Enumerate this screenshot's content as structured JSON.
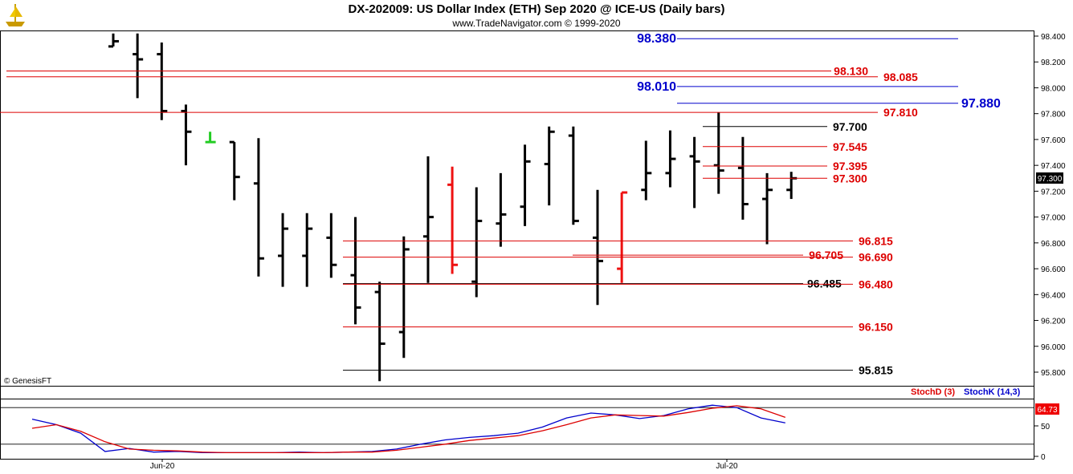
{
  "header": {
    "title": "DX-202009:  US Dollar Index (ETH) Sep 2020 @ ICE-US  (Daily bars)",
    "subtitle": "www.TradeNavigator.com © 1999-2020",
    "logo_icon": "trading-navigator-ship-icon"
  },
  "footer": {
    "copyright": "© GenesisFT"
  },
  "colors": {
    "bar": "#000000",
    "bar_red": "#ee1111",
    "bar_green": "#22cc22",
    "level_red": "#dd0000",
    "level_blue": "#0000cc",
    "level_black": "#000000",
    "stoch_d": "#dd0000",
    "stoch_k": "#0000cc"
  },
  "chart_data": [
    {
      "type": "ohlc",
      "title": "DX-202009:  US Dollar Index (ETH) Sep 2020 @ ICE-US  (Daily bars)",
      "ylim": [
        95.72,
        98.47
      ],
      "yticks": [
        98.4,
        98.2,
        98.0,
        97.8,
        97.6,
        97.4,
        97.2,
        97.0,
        96.8,
        96.6,
        96.4,
        96.2,
        96.0,
        95.8
      ],
      "ytick_labels": [
        "98.400",
        "98.200",
        "98.000",
        "97.800",
        "97.600",
        "97.400",
        "97.200",
        "97.000",
        "96.800",
        "96.600",
        "96.400",
        "96.200",
        "96.000",
        "95.800"
      ],
      "xtick_labels": [
        "Jun-20",
        "Jul-20"
      ],
      "last_price": "97.300",
      "bars": [
        {
          "o": 98.32,
          "h": 98.42,
          "l": 98.32,
          "c": 98.36,
          "color": "black"
        },
        {
          "o": 98.26,
          "h": 98.42,
          "l": 97.92,
          "c": 98.22,
          "color": "black"
        },
        {
          "o": 98.26,
          "h": 98.35,
          "l": 97.75,
          "c": 97.82,
          "color": "black"
        },
        {
          "o": 97.82,
          "h": 97.87,
          "l": 97.4,
          "c": 97.66,
          "color": "black"
        },
        {
          "o": 97.58,
          "h": 97.66,
          "l": 97.58,
          "c": 97.58,
          "color": "green"
        },
        {
          "o": 97.58,
          "h": 97.58,
          "l": 97.13,
          "c": 97.31,
          "color": "black"
        },
        {
          "o": 97.26,
          "h": 97.61,
          "l": 96.54,
          "c": 96.68,
          "color": "black"
        },
        {
          "o": 96.7,
          "h": 97.03,
          "l": 96.46,
          "c": 96.91,
          "color": "black"
        },
        {
          "o": 96.7,
          "h": 97.03,
          "l": 96.46,
          "c": 96.91,
          "color": "black"
        },
        {
          "o": 96.84,
          "h": 97.03,
          "l": 96.53,
          "c": 96.63,
          "color": "black"
        },
        {
          "o": 96.55,
          "h": 97.0,
          "l": 96.17,
          "c": 96.3,
          "color": "black"
        },
        {
          "o": 96.42,
          "h": 96.5,
          "l": 95.73,
          "c": 96.02,
          "color": "black"
        },
        {
          "o": 96.11,
          "h": 96.85,
          "l": 95.91,
          "c": 96.75,
          "color": "black"
        },
        {
          "o": 96.85,
          "h": 97.47,
          "l": 96.49,
          "c": 97.0,
          "color": "black"
        },
        {
          "o": 97.25,
          "h": 97.39,
          "l": 96.56,
          "c": 96.63,
          "color": "red"
        },
        {
          "o": 96.5,
          "h": 97.23,
          "l": 96.38,
          "c": 96.97,
          "color": "black"
        },
        {
          "o": 96.95,
          "h": 97.34,
          "l": 96.77,
          "c": 97.02,
          "color": "black"
        },
        {
          "o": 97.08,
          "h": 97.56,
          "l": 96.93,
          "c": 97.43,
          "color": "black"
        },
        {
          "o": 97.41,
          "h": 97.7,
          "l": 97.09,
          "c": 97.66,
          "color": "black"
        },
        {
          "o": 97.63,
          "h": 97.7,
          "l": 96.94,
          "c": 96.97,
          "color": "black"
        },
        {
          "o": 96.84,
          "h": 97.21,
          "l": 96.32,
          "c": 96.66,
          "color": "black"
        },
        {
          "o": 96.6,
          "h": 97.19,
          "l": 96.49,
          "c": 97.19,
          "color": "red"
        },
        {
          "o": 97.21,
          "h": 97.59,
          "l": 97.13,
          "c": 97.34,
          "color": "black"
        },
        {
          "o": 97.34,
          "h": 97.67,
          "l": 97.23,
          "c": 97.45,
          "color": "black"
        },
        {
          "o": 97.47,
          "h": 97.62,
          "l": 97.07,
          "c": 97.43,
          "color": "black"
        },
        {
          "o": 97.4,
          "h": 97.81,
          "l": 97.18,
          "c": 97.36,
          "color": "black"
        },
        {
          "o": 97.38,
          "h": 97.62,
          "l": 96.98,
          "c": 97.1,
          "color": "black"
        },
        {
          "o": 97.14,
          "h": 97.34,
          "l": 96.79,
          "c": 97.21,
          "color": "black"
        },
        {
          "o": 97.21,
          "h": 97.35,
          "l": 97.14,
          "c": 97.3,
          "color": "black"
        }
      ],
      "levels": [
        {
          "value": 98.38,
          "label": "98.380",
          "color": "blue",
          "side": "left"
        },
        {
          "value": 98.13,
          "label": "98.130",
          "color": "red",
          "side": "left"
        },
        {
          "value": 98.085,
          "label": "98.085",
          "color": "red",
          "side": "right"
        },
        {
          "value": 98.01,
          "label": "98.010",
          "color": "blue",
          "side": "left"
        },
        {
          "value": 97.88,
          "label": "97.880",
          "color": "blue",
          "side": "right"
        },
        {
          "value": 97.81,
          "label": "97.810",
          "color": "red",
          "side": "right"
        },
        {
          "value": 97.7,
          "label": "97.700",
          "color": "black",
          "side": "right"
        },
        {
          "value": 97.545,
          "label": "97.545",
          "color": "red",
          "side": "right"
        },
        {
          "value": 97.395,
          "label": "97.395",
          "color": "red",
          "side": "right"
        },
        {
          "value": 97.3,
          "label": "97.300",
          "color": "red",
          "side": "right"
        },
        {
          "value": 96.815,
          "label": "96.815",
          "color": "red",
          "side": "right"
        },
        {
          "value": 96.705,
          "label": "96.705",
          "color": "red",
          "side": "left"
        },
        {
          "value": 96.69,
          "label": "96.690",
          "color": "red",
          "side": "right"
        },
        {
          "value": 96.485,
          "label": "96.485",
          "color": "black",
          "side": "left"
        },
        {
          "value": 96.48,
          "label": "96.480",
          "color": "red",
          "side": "right"
        },
        {
          "value": 96.15,
          "label": "96.150",
          "color": "red",
          "side": "right"
        },
        {
          "value": 95.815,
          "label": "95.815",
          "color": "black",
          "side": "right"
        }
      ]
    },
    {
      "type": "line",
      "title": "",
      "ylim": [
        0,
        100
      ],
      "yticks": [
        0,
        50
      ],
      "ytick_labels": [
        "0",
        "50"
      ],
      "last_value_label": "64.73",
      "legend": [
        "StochD (3)",
        "StochK (14,3)"
      ],
      "series": [
        {
          "name": "StochK (14,3)",
          "color": "blue",
          "values": [
            61,
            52,
            38,
            8,
            13,
            7,
            8,
            6,
            6,
            6,
            6,
            7,
            6,
            7,
            8,
            12,
            20,
            27,
            31,
            34,
            38,
            48,
            63,
            71,
            68,
            62,
            67,
            78,
            84,
            80,
            63,
            55
          ]
        },
        {
          "name": "StochD (3)",
          "color": "red",
          "values": [
            46,
            52,
            41,
            24,
            12,
            10,
            9,
            7,
            6,
            6,
            6,
            6,
            6,
            7,
            7,
            10,
            15,
            20,
            26,
            30,
            34,
            42,
            52,
            63,
            68,
            67,
            66,
            72,
            79,
            83,
            78,
            64
          ]
        }
      ]
    }
  ]
}
